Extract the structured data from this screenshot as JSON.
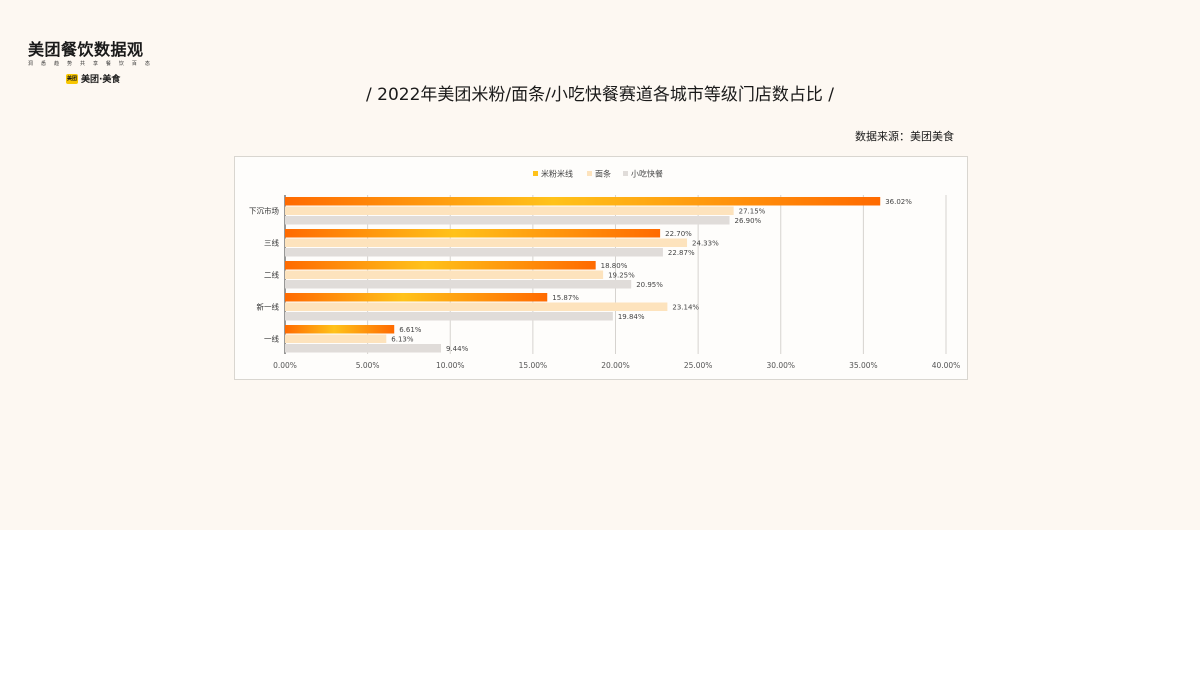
{
  "logo": {
    "title": "美团餐饮数据观",
    "subtitle": "洞 悉 趋 势 共 享 餐 饮 百 态",
    "brand_badge": "美团",
    "brand": "美团·美食"
  },
  "page": {
    "title": "/  2022年美团米粉/面条/小吃快餐赛道各城市等级门店数占比  /",
    "source": "数据来源：美团美食"
  },
  "colors": {
    "series1_start": "#ff6a00",
    "series1_mid": "#ffc21a",
    "series2": "#fde3bd",
    "series3": "#e0dcd9"
  },
  "chart_data": {
    "type": "bar",
    "orientation": "horizontal",
    "categories": [
      "下沉市场",
      "三线",
      "二线",
      "新一线",
      "一线"
    ],
    "series": [
      {
        "name": "米粉米线",
        "values": [
          36.02,
          22.7,
          18.8,
          15.87,
          6.61
        ],
        "labels": [
          "36.02%",
          "22.70%",
          "18.80%",
          "15.87%",
          "6.61%"
        ]
      },
      {
        "name": "面条",
        "values": [
          27.15,
          24.33,
          19.25,
          23.14,
          6.13
        ],
        "labels": [
          "27.15%",
          "24.33%",
          "19.25%",
          "23.14%",
          "6.13%"
        ]
      },
      {
        "name": "小吃快餐",
        "values": [
          26.9,
          22.87,
          20.95,
          19.84,
          9.44
        ],
        "labels": [
          "26.90%",
          "22.87%",
          "20.95%",
          "19.84%",
          "9.44%"
        ]
      }
    ],
    "xlim": [
      0,
      40
    ],
    "xticks": [
      0,
      5,
      10,
      15,
      20,
      25,
      30,
      35,
      40
    ],
    "xtick_labels": [
      "0.00%",
      "5.00%",
      "10.00%",
      "15.00%",
      "20.00%",
      "25.00%",
      "30.00%",
      "35.00%",
      "40.00%"
    ],
    "grid": "vertical",
    "legend_position": "top-center"
  }
}
